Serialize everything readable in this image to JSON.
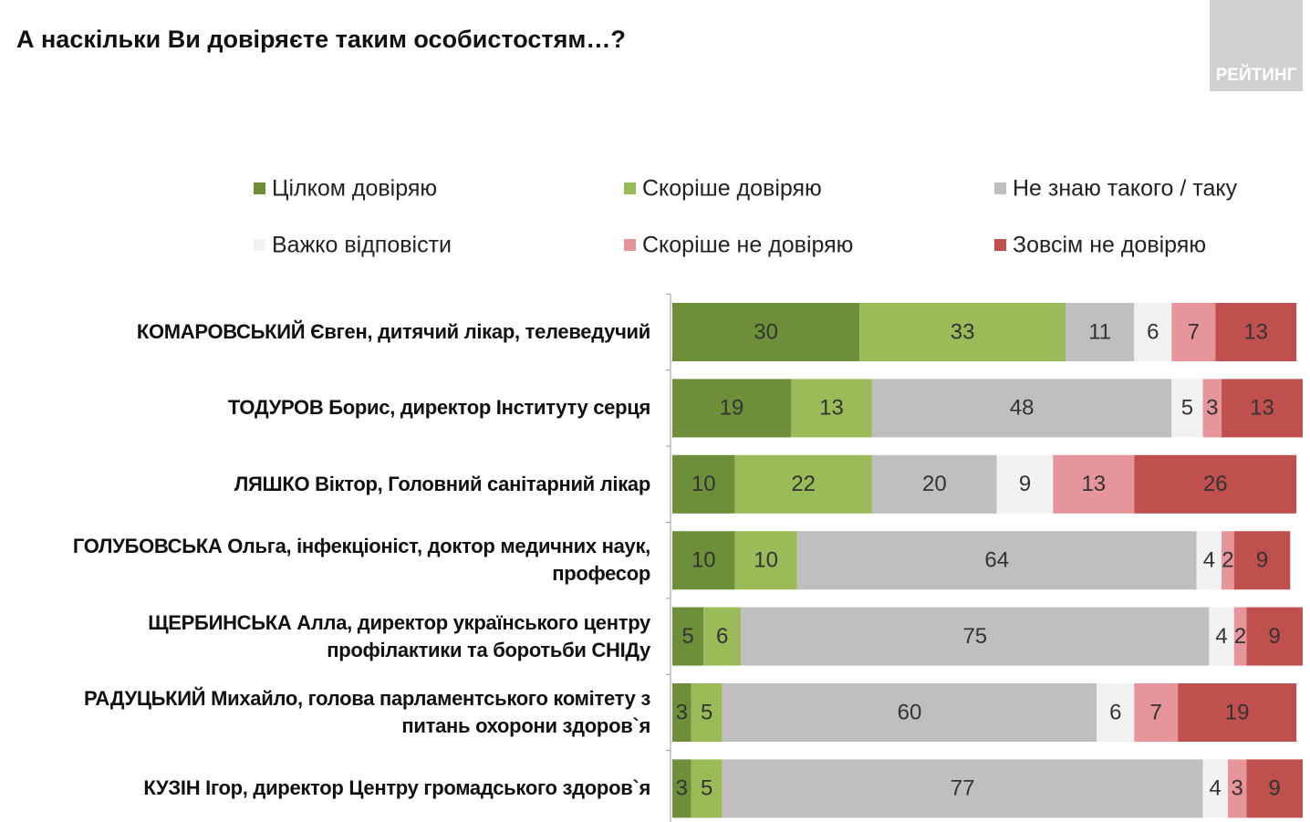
{
  "chart_data": {
    "type": "stacked_bar_horizontal",
    "title": "А наскільки Ви довіряєте таким особистостям…?",
    "categories": [
      "КОМАРОВСЬКИЙ Євген, дитячий лікар, телеведучий",
      "ТОДУРОВ Борис, директор Інституту серця",
      "ЛЯШКО Віктор, Головний санітарний лікар",
      "ГОЛУБОВСЬКА Ольга, інфекціоніст, доктор медичних наук, професор",
      "ЩЕРБИНСЬКА Алла, директор українського центру профілактики та боротьби СНІДу",
      "РАДУЦЬКИЙ Михайло, голова парламентського комітету з питань охорони здоров`я",
      "КУЗІН Ігор, директор Центру громадського здоров`я"
    ],
    "series": [
      {
        "name": "Цілком довіряю",
        "color": "#6e8f3a",
        "values": [
          30,
          19,
          10,
          10,
          5,
          3,
          3
        ]
      },
      {
        "name": "Скоріше довіряю",
        "color": "#9bbb59",
        "values": [
          33,
          13,
          22,
          10,
          6,
          5,
          5
        ]
      },
      {
        "name": "Не знаю такого / таку",
        "color": "#bfbfbf",
        "values": [
          11,
          48,
          20,
          64,
          75,
          60,
          77
        ]
      },
      {
        "name": "Важко відповісти",
        "color": "#f2f2f2",
        "values": [
          6,
          5,
          9,
          4,
          4,
          6,
          4
        ]
      },
      {
        "name": "Скоріше не довіряю",
        "color": "#e6959a",
        "values": [
          7,
          3,
          13,
          2,
          2,
          7,
          3
        ]
      },
      {
        "name": "Зовсім не довіряю",
        "color": "#c0504d",
        "values": [
          13,
          13,
          26,
          9,
          9,
          19,
          9
        ]
      }
    ],
    "xlim": [
      0,
      101
    ]
  },
  "logo": "РЕЙТИНГ"
}
